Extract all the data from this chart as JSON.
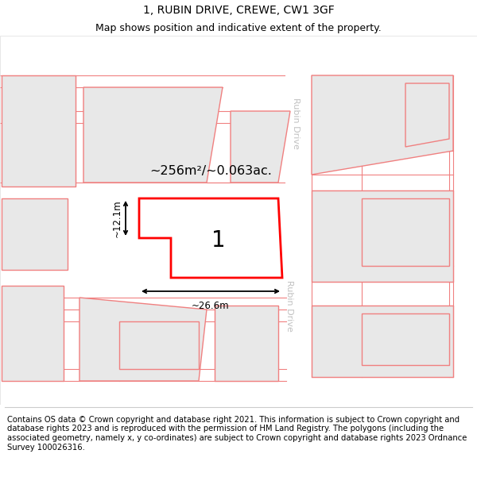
{
  "title": "1, RUBIN DRIVE, CREWE, CW1 3GF",
  "subtitle": "Map shows position and indicative extent of the property.",
  "footer": "Contains OS data © Crown copyright and database right 2021. This information is subject to Crown copyright and database rights 2023 and is reproduced with the permission of HM Land Registry. The polygons (including the associated geometry, namely x, y co-ordinates) are subject to Crown copyright and database rights 2023 Ordnance Survey 100026316.",
  "area_label": "~256m²/~0.063ac.",
  "width_label": "~26.6m",
  "height_label": "~12.1m",
  "plot_number": "1",
  "street_name": "Rubin Drive",
  "map_bg": "#ffffff",
  "block_fill": "#e8e8e8",
  "block_stroke": "#f08080",
  "plot_fill": "#ffffff",
  "plot_stroke": "#ff0000",
  "title_fontsize": 10,
  "subtitle_fontsize": 9,
  "footer_fontsize": 7.2,
  "road_label_color": "#c0c0c0"
}
